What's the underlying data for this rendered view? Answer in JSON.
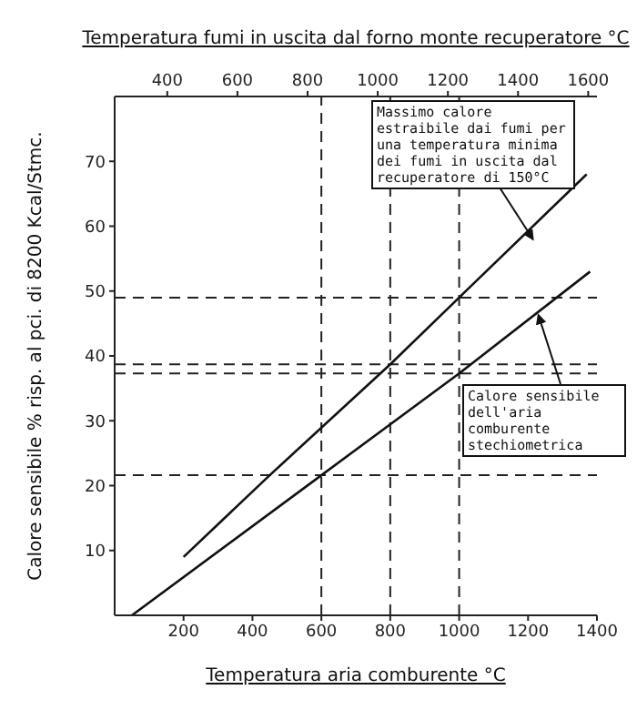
{
  "chart_data": {
    "type": "line",
    "x2label": "Temperatura fumi in uscita dal forno monte recuperatore °C",
    "xlabel": "Temperatura aria comburente °C",
    "ylabel": "Calore sensibile % risp. al pci. di 8200 Kcal/Stmc.",
    "xlim": [
      0,
      1400
    ],
    "xticks": [
      200,
      400,
      600,
      800,
      1000,
      1200,
      1400
    ],
    "x2lim": [
      250,
      1625
    ],
    "x2ticks": [
      400,
      600,
      800,
      1000,
      1200,
      1400,
      1600
    ],
    "ylim": [
      0,
      80
    ],
    "yticks": [
      10,
      20,
      30,
      40,
      50,
      60,
      70
    ],
    "grid": false,
    "line_style": "solid",
    "marker": "none",
    "series": [
      {
        "color": "#111111",
        "x": [
          200,
          450,
          800,
          1000,
          1370
        ],
        "values": [
          9,
          21.6,
          38.7,
          49,
          68
        ]
      },
      {
        "color": "#111111",
        "x": [
          50,
          600,
          1000,
          1380
        ],
        "values": [
          0,
          21.6,
          37.3,
          53
        ]
      }
    ],
    "ref_lines": [
      {
        "axis": "y",
        "value": 49,
        "color": "#222222",
        "line_style": "dashed"
      },
      {
        "axis": "y",
        "value": 38.7,
        "color": "#222222",
        "line_style": "dashed"
      },
      {
        "axis": "y",
        "value": 37.3,
        "color": "#222222",
        "line_style": "dashed"
      },
      {
        "axis": "y",
        "value": 21.6,
        "color": "#222222",
        "line_style": "dashed"
      },
      {
        "axis": "x",
        "value": 600,
        "color": "#222222",
        "line_style": "dashed"
      },
      {
        "axis": "x",
        "value": 800,
        "color": "#222222",
        "line_style": "dashed"
      },
      {
        "axis": "x",
        "value": 1000,
        "color": "#222222",
        "line_style": "dashed"
      }
    ],
    "annotations": [
      {
        "text": "Massimo calore estraibile dai fumi per una temperatura minima dei fumi in uscita dal recuperatore di 150°C",
        "x": 1214,
        "y": 58
      },
      {
        "text": "Calore sensibile dell'aria comburente stechiometrica",
        "x": 1230,
        "y": 46.3
      }
    ]
  }
}
